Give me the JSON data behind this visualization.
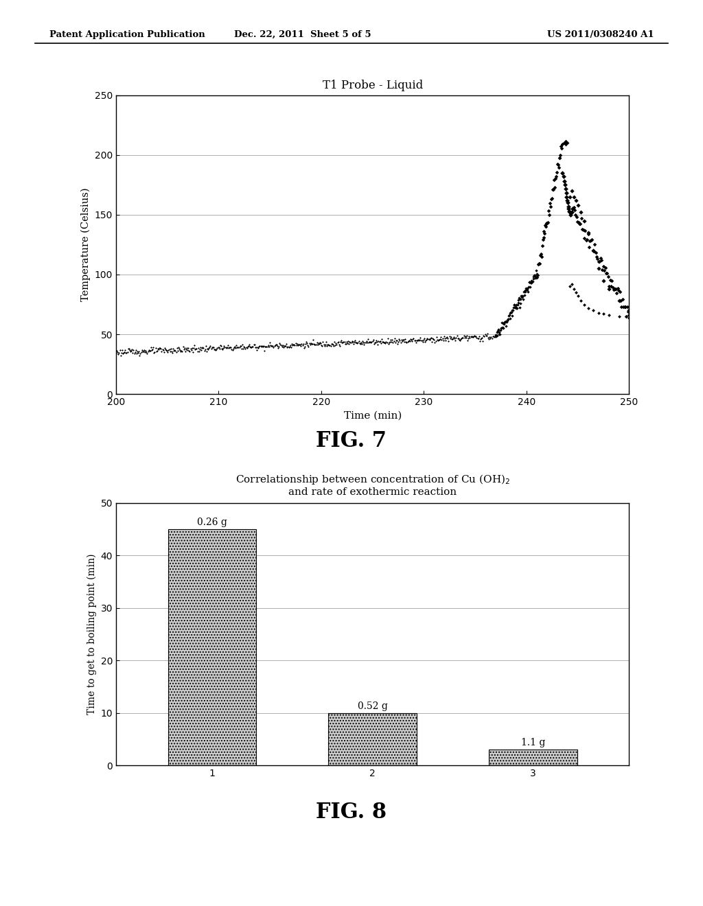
{
  "header_left": "Patent Application Publication",
  "header_mid": "Dec. 22, 2011  Sheet 5 of 5",
  "header_right": "US 2011/0308240 A1",
  "fig7_title": "T1 Probe - Liquid",
  "fig7_xlabel": "Time (min)",
  "fig7_ylabel": "Temperature (Celsius)",
  "fig7_xlim": [
    200,
    250
  ],
  "fig7_ylim": [
    0,
    250
  ],
  "fig7_xticks": [
    200,
    210,
    220,
    230,
    240,
    250
  ],
  "fig7_yticks": [
    0,
    50,
    100,
    150,
    200,
    250
  ],
  "fig7_label": "FIG. 7",
  "fig8_title_line1": "Correlationship between concentration of Cu (OH)",
  "fig8_title_sub": "2",
  "fig8_title_line2": "and rate of exothermic reaction",
  "fig8_ylabel": "Time to get to boiling point (min)",
  "fig8_xlim": [
    0.4,
    3.6
  ],
  "fig8_ylim": [
    0,
    50
  ],
  "fig8_xticks": [
    1,
    2,
    3
  ],
  "fig8_yticks": [
    0,
    10,
    20,
    30,
    40,
    50
  ],
  "fig8_categories": [
    1,
    2,
    3
  ],
  "fig8_values": [
    45,
    10,
    3
  ],
  "fig8_bar_labels": [
    "0.26 g",
    "0.52 g",
    "1.1 g"
  ],
  "fig8_label": "FIG. 8",
  "background_color": "#ffffff",
  "text_color": "#000000",
  "grid_color": "#999999"
}
